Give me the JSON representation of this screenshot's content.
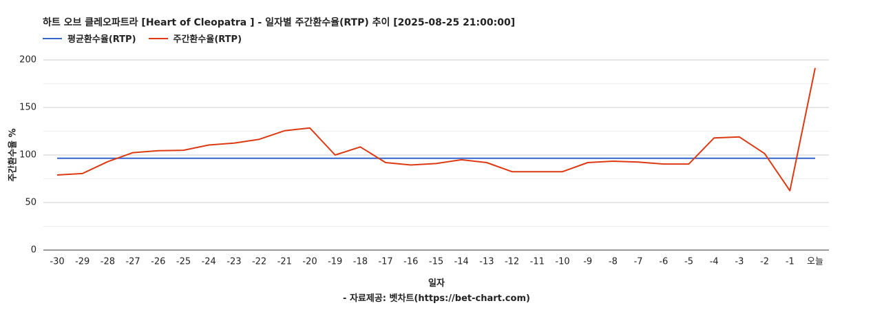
{
  "chart_data": {
    "type": "line",
    "title": "하트 오브 클레오파트라 [Heart of Cleopatra ] - 일자별 주간환수율(RTP) 추이 [2025-08-25 21:00:00]",
    "xlabel": "일자",
    "ylabel": "주간환수율 %",
    "source": "- 자료제공: 벳차트(https://bet-chart.com)",
    "categories": [
      "-30",
      "-29",
      "-28",
      "-27",
      "-26",
      "-25",
      "-24",
      "-23",
      "-22",
      "-21",
      "-20",
      "-19",
      "-18",
      "-17",
      "-16",
      "-15",
      "-14",
      "-13",
      "-12",
      "-11",
      "-10",
      "-9",
      "-8",
      "-7",
      "-6",
      "-5",
      "-4",
      "-3",
      "-2",
      "-1",
      "오늘"
    ],
    "yticks": [
      0,
      50,
      100,
      150,
      200
    ],
    "ylim": [
      0,
      200
    ],
    "grid": true,
    "legend_position": "top-left",
    "series": [
      {
        "name": "평균환수율(RTP)",
        "color": "#3366cc",
        "values": [
          96.5,
          96.5,
          96.5,
          96.5,
          96.5,
          96.5,
          96.5,
          96.5,
          96.5,
          96.5,
          96.5,
          96.5,
          96.5,
          96.5,
          96.5,
          96.5,
          96.5,
          96.5,
          96.5,
          96.5,
          96.5,
          96.5,
          96.5,
          96.5,
          96.5,
          96.5,
          96.5,
          96.5,
          96.5,
          96.5,
          96.5
        ]
      },
      {
        "name": "주간환수율(RTP)",
        "color": "#dc3912",
        "values": [
          79,
          80.5,
          93,
          102.5,
          104.5,
          105,
          110.5,
          112.5,
          116.5,
          125.5,
          128.5,
          100,
          108.5,
          92,
          89.5,
          91,
          95,
          92,
          82.5,
          82.5,
          82.5,
          92,
          93.5,
          92.5,
          90.5,
          90.5,
          118,
          119,
          101.5,
          62.5,
          191.5
        ]
      }
    ]
  }
}
